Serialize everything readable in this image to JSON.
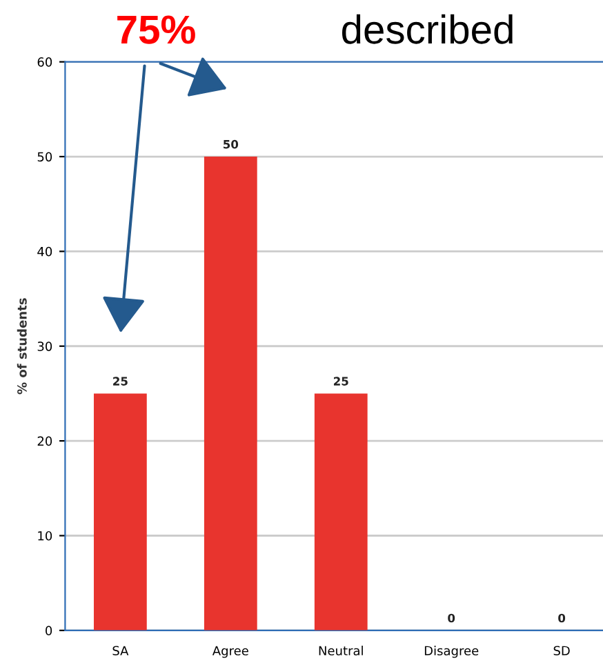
{
  "chart_data": {
    "type": "bar",
    "categories": [
      "SA",
      "Agree",
      "Neutral",
      "Disagree",
      "SD"
    ],
    "values": [
      25,
      50,
      25,
      0,
      0
    ],
    "color": "#e8342e",
    "ylabel": "% of students",
    "ylim": [
      0,
      60
    ],
    "yticks": [
      0,
      10,
      20,
      30,
      40,
      50,
      60
    ],
    "grid": "y",
    "data_labels": true,
    "annotations": [
      "75%",
      "described"
    ]
  }
}
